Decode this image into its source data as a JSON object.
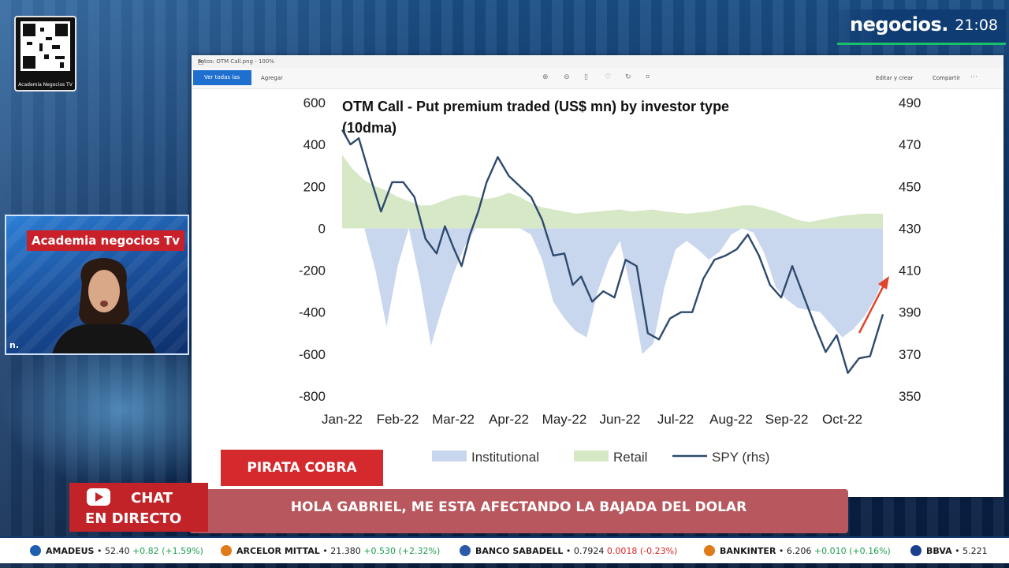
{
  "brand": {
    "name": "negocios.",
    "time": "21:08"
  },
  "qr": {
    "label": "Academia Negocios TV"
  },
  "window": {
    "title": "Fotos: OTM Call.png - 100%",
    "toolbar": {
      "primary": "Ver todas las fotos",
      "add": "Agregar",
      "edit": "Editar y crear",
      "share": "Compartir"
    }
  },
  "webcam": {
    "title": "Academia negocios Tv",
    "logo": "n."
  },
  "name_card": "PIRATA COBRA",
  "chat": {
    "line1": "CHAT",
    "line2": "EN DIRECTO"
  },
  "comment": "HOLA GABRIEL, ME ESTA AFECTANDO LA BAJADA DEL DOLAR",
  "ticker": [
    {
      "name": "AMADEUS",
      "price": "52.40",
      "change": "+0.82 (+1.59%)",
      "dir": "up",
      "color": "#1f5fb0"
    },
    {
      "name": "ARCELOR MITTAL",
      "price": "21.380",
      "change": "+0.530 (+2.32%)",
      "dir": "up",
      "color": "#e07b1a"
    },
    {
      "name": "BANCO SABADELL",
      "price": "0.7924",
      "change": "0.0018 (-0.23%)",
      "dir": "down",
      "color": "#2a5aa8"
    },
    {
      "name": "BANKINTER",
      "price": "6.206",
      "change": "+0.010 (+0.16%)",
      "dir": "up",
      "color": "#e07b1a"
    },
    {
      "name": "BBVA",
      "price": "5.221",
      "change": "",
      "dir": "up",
      "color": "#1a3f8c"
    }
  ],
  "colors": {
    "institutional": "#c9d7ee",
    "retail": "#d6e8c6",
    "spy": "#2e4a6e",
    "arrow": "#e0452a"
  },
  "chart_data": {
    "type": "area",
    "title": "OTM Call - Put premium traded (US$ mn) by investor type (10dma)",
    "categories": [
      "Jan-22",
      "Feb-22",
      "Mar-22",
      "Apr-22",
      "May-22",
      "Jun-22",
      "Jul-22",
      "Aug-22",
      "Sep-22",
      "Oct-22"
    ],
    "ylim_left": [
      -800,
      600
    ],
    "yticks_left": [
      "600",
      "400",
      "200",
      "0",
      "-200",
      "-400",
      "-600",
      "-800"
    ],
    "ylim_right": [
      350,
      490
    ],
    "yticks_right": [
      "490",
      "470",
      "450",
      "430",
      "410",
      "390",
      "370",
      "350"
    ],
    "legend": [
      "Institutional",
      "Retail",
      "SPY (rhs)"
    ],
    "series": [
      {
        "name": "Institutional",
        "axis": "left",
        "x": [
          0,
          0.2,
          0.4,
          0.6,
          0.8,
          1.0,
          1.2,
          1.4,
          1.6,
          1.8,
          2.0,
          2.2,
          2.4,
          2.6,
          2.8,
          3.0,
          3.2,
          3.4,
          3.6,
          3.8,
          4.0,
          4.2,
          4.4,
          4.6,
          4.8,
          5.0,
          5.2,
          5.4,
          5.6,
          5.8,
          6.0,
          6.2,
          6.4,
          6.6,
          6.8,
          7.0,
          7.2,
          7.4,
          7.6,
          7.8,
          8.0,
          8.2,
          8.4,
          8.6,
          8.8,
          9.0,
          9.2,
          9.4,
          9.6,
          9.73
        ],
        "values": [
          0,
          0,
          0,
          -200,
          -470,
          -180,
          0,
          -250,
          -560,
          -380,
          -220,
          -90,
          0,
          0,
          0,
          0,
          0,
          -30,
          -150,
          -350,
          -430,
          -490,
          -520,
          -300,
          -150,
          -60,
          -300,
          -600,
          -550,
          -280,
          -100,
          -60,
          -100,
          -150,
          -110,
          -30,
          0,
          -20,
          -120,
          -280,
          -340,
          -380,
          -390,
          -400,
          -460,
          -520,
          -480,
          -420,
          -330,
          -250
        ]
      },
      {
        "name": "Retail",
        "axis": "left",
        "x": [
          0,
          0.2,
          0.4,
          0.6,
          0.8,
          1.0,
          1.2,
          1.4,
          1.6,
          1.8,
          2.0,
          2.2,
          2.4,
          2.6,
          2.8,
          3.0,
          3.2,
          3.4,
          3.6,
          3.8,
          4.0,
          4.2,
          4.4,
          4.6,
          4.8,
          5.0,
          5.2,
          5.4,
          5.6,
          5.8,
          6.0,
          6.2,
          6.4,
          6.6,
          6.8,
          7.0,
          7.2,
          7.4,
          7.6,
          7.8,
          8.0,
          8.2,
          8.4,
          8.6,
          8.8,
          9.0,
          9.2,
          9.4,
          9.6,
          9.73
        ],
        "values": [
          350,
          280,
          230,
          200,
          180,
          150,
          130,
          110,
          110,
          130,
          150,
          160,
          150,
          140,
          150,
          170,
          150,
          120,
          100,
          90,
          80,
          70,
          75,
          80,
          85,
          90,
          80,
          85,
          90,
          80,
          75,
          70,
          75,
          80,
          90,
          100,
          110,
          110,
          95,
          80,
          60,
          40,
          30,
          40,
          50,
          60,
          65,
          70,
          70,
          70
        ]
      },
      {
        "name": "SPY (rhs)",
        "axis": "right",
        "x": [
          0,
          0.15,
          0.3,
          0.5,
          0.7,
          0.9,
          1.1,
          1.3,
          1.5,
          1.7,
          1.85,
          2.0,
          2.15,
          2.3,
          2.45,
          2.6,
          2.8,
          3.0,
          3.2,
          3.4,
          3.6,
          3.8,
          4.0,
          4.15,
          4.3,
          4.5,
          4.7,
          4.9,
          5.1,
          5.3,
          5.5,
          5.7,
          5.9,
          6.1,
          6.3,
          6.5,
          6.7,
          6.9,
          7.1,
          7.3,
          7.5,
          7.7,
          7.9,
          8.1,
          8.3,
          8.5,
          8.7,
          8.9,
          9.1,
          9.3,
          9.5,
          9.73
        ],
        "values": [
          477,
          470,
          473,
          455,
          438,
          452,
          452,
          445,
          425,
          418,
          431,
          421,
          412,
          427,
          438,
          452,
          464,
          455,
          450,
          445,
          434,
          417,
          418,
          403,
          407,
          395,
          400,
          397,
          415,
          412,
          380,
          377,
          387,
          390,
          390,
          406,
          415,
          417,
          420,
          427,
          417,
          403,
          397,
          412,
          398,
          384,
          371,
          379,
          361,
          368,
          369,
          389
        ]
      }
    ]
  }
}
